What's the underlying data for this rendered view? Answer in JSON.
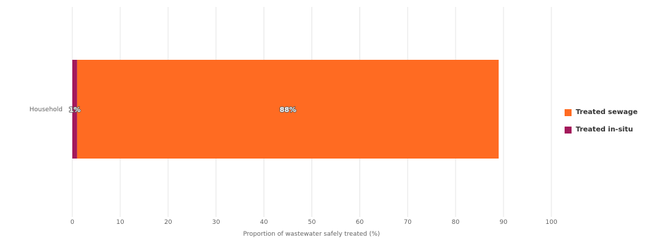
{
  "chart_data": {
    "type": "bar",
    "orientation": "horizontal",
    "stacked": true,
    "categories": [
      "Household"
    ],
    "series": [
      {
        "name": "Treated in-situ",
        "values": [
          1
        ],
        "label": "1%",
        "color": "#a3195b"
      },
      {
        "name": "Treated sewage",
        "values": [
          88
        ],
        "label": "88%",
        "color": "#ff6b22"
      }
    ],
    "xlabel": "Proportion of wastewater safely treated (%)",
    "xlim": [
      0,
      100
    ],
    "xticks": [
      "0",
      "10",
      "20",
      "30",
      "40",
      "50",
      "60",
      "70",
      "80",
      "90",
      "100"
    ],
    "grid": "vertical",
    "legend_position": "right",
    "legend_order": [
      "Treated sewage",
      "Treated in-situ"
    ]
  }
}
